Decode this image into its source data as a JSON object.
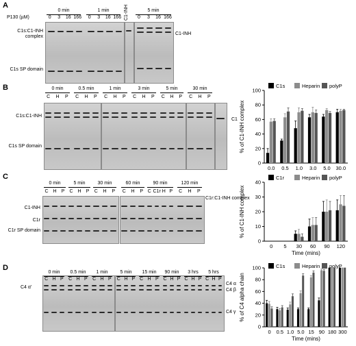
{
  "panels": {
    "A": {
      "letter": "A",
      "conc_title": "P130 (µM)",
      "groups": [
        {
          "time": "0 min",
          "lanes": [
            "0",
            "3",
            "16",
            "166"
          ]
        },
        {
          "time": "1 min",
          "lanes": [
            "0",
            "3",
            "16",
            "166"
          ]
        },
        {
          "time": "5 min",
          "lanes": [
            "0",
            "3",
            "16",
            "166"
          ]
        }
      ],
      "control_lane": "C1-INH",
      "left_labels": [
        "C1s:C1-INH complex",
        "C1s SP domain"
      ],
      "right_label": "C1-INH"
    },
    "B": {
      "letter": "B",
      "times": [
        "0 min",
        "0.5 min",
        "1 min",
        "3 min",
        "5 min",
        "30 min"
      ],
      "lane_letters": [
        "C",
        "H",
        "P"
      ],
      "left_labels": [
        "C1s:C1-INH",
        "C1s SP domain"
      ],
      "right_label": "C1"
    },
    "C": {
      "letter": "C",
      "times": [
        "0 min",
        "5 min",
        "30 min",
        "60 min",
        "90 min",
        "120 min"
      ],
      "lane_letters": [
        "C",
        "H",
        "P"
      ],
      "extra_lane": "C1r",
      "left_labels": [
        "C1-INH",
        "C1r",
        "C1r SP domain"
      ],
      "right_label": "C1r:C1-INH complex"
    },
    "D": {
      "letter": "D",
      "times": [
        "0 min",
        "0.5 min",
        "1 min",
        "5 min",
        "15 min",
        "90 min",
        "3 hrs",
        "5 hrs"
      ],
      "lane_letters": [
        "C",
        "H",
        "P"
      ],
      "left_labels": [
        "C4 α'"
      ],
      "right_labels": [
        "C4 α",
        "C4 β",
        "C4 γ"
      ]
    }
  },
  "chart_data": [
    {
      "type": "bar",
      "panel": "B",
      "categories": [
        "0.0",
        "0.5",
        "1.0",
        "3.0",
        "5.0",
        "30.0"
      ],
      "series": [
        {
          "name": "C1s",
          "color": "#000000",
          "values": [
            14,
            31,
            48,
            63,
            64,
            70
          ],
          "errors": [
            6,
            2,
            10,
            4,
            3,
            4
          ]
        },
        {
          "name": "Heparin",
          "color": "#8c8c8c",
          "values": [
            57,
            63,
            70,
            70,
            73,
            72
          ],
          "errors": [
            4,
            5,
            6,
            7,
            2,
            2
          ]
        },
        {
          "name": "polyP",
          "color": "#555555",
          "values": [
            58,
            71,
            72,
            69,
            69,
            73
          ],
          "errors": [
            3,
            5,
            3,
            4,
            2,
            1
          ]
        }
      ],
      "title": "",
      "xlabel": "",
      "ylabel": "% of C1-INH complex",
      "ylim": [
        0,
        100
      ],
      "yticks": [
        0,
        20,
        40,
        60,
        80,
        100
      ],
      "legend": "top"
    },
    {
      "type": "bar",
      "panel": "C",
      "categories": [
        "0",
        "5",
        "30",
        "60",
        "90",
        "120"
      ],
      "series": [
        {
          "name": "C1r",
          "color": "#000000",
          "values": [
            0,
            0,
            5,
            10,
            20,
            21
          ],
          "errors": [
            0,
            0,
            2,
            5,
            7,
            7
          ]
        },
        {
          "name": "Heparin",
          "color": "#8c8c8c",
          "values": [
            0,
            0,
            5,
            11,
            20,
            25
          ],
          "errors": [
            0,
            0,
            3,
            5,
            8,
            6
          ]
        },
        {
          "name": "polyP",
          "color": "#555555",
          "values": [
            0,
            0,
            3,
            11,
            21,
            24
          ],
          "errors": [
            0,
            0,
            2,
            5,
            6,
            7
          ]
        }
      ],
      "title": "",
      "xlabel": "Time (mins)",
      "ylabel": "% of C1-INH complex",
      "ylim": [
        0,
        40
      ],
      "yticks": [
        0,
        10,
        20,
        30,
        40
      ],
      "legend": "top"
    },
    {
      "type": "bar",
      "panel": "D",
      "categories": [
        "0",
        "0.5",
        "1.0",
        "5.0",
        "15",
        "90",
        "180",
        "300"
      ],
      "series": [
        {
          "name": "C1s",
          "color": "#000000",
          "values": [
            40,
            30,
            29,
            30,
            30,
            45,
            100,
            100
          ],
          "errors": [
            5,
            3,
            3,
            2,
            2,
            4,
            1,
            1
          ]
        },
        {
          "name": "Heparin",
          "color": "#8c8c8c",
          "values": [
            39,
            28,
            38,
            57,
            84,
            96,
            100,
            100
          ],
          "errors": [
            4,
            3,
            4,
            4,
            3,
            2,
            1,
            1
          ]
        },
        {
          "name": "polyP",
          "color": "#555555",
          "values": [
            31,
            33,
            52,
            87,
            92,
            95,
            100,
            100
          ],
          "errors": [
            3,
            3,
            4,
            3,
            3,
            2,
            1,
            1
          ]
        }
      ],
      "title": "",
      "xlabel": "Time (mins)",
      "ylabel": "% of C4 alpha chain",
      "ylim": [
        0,
        100
      ],
      "yticks": [
        0,
        20,
        40,
        60,
        80,
        100
      ],
      "legend": "top"
    }
  ]
}
